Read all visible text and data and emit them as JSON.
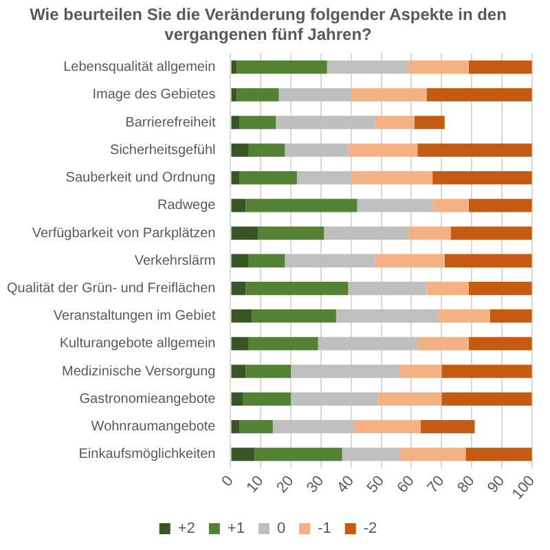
{
  "chart_data": {
    "type": "bar",
    "orientation": "horizontal",
    "stacked": true,
    "title": "Wie beurteilen Sie die Veränderung folgender Aspekte in den vergangenen fünf Jahren?",
    "categories": [
      "Lebensqualität allgemein",
      "Image des Gebietes",
      "Barrierefreiheit",
      "Sicherheitsgefühl",
      "Sauberkeit und Ordnung",
      "Radwege",
      "Verfügbarkeit von Parkplätzen",
      "Verkehrslärm",
      "Qualität der Grün- und Freiflächen",
      "Veranstaltungen im Gebiet",
      "Kulturangebote allgemein",
      "Medizinische Versorgung",
      "Gastronomieangebote",
      "Wohnraumangebote",
      "Einkaufsmöglichkeiten"
    ],
    "series": [
      {
        "name": "+2",
        "color": "#375623",
        "values": [
          2,
          2,
          3,
          6,
          3,
          5,
          9,
          6,
          5,
          7,
          6,
          5,
          4,
          3,
          8
        ]
      },
      {
        "name": "+1",
        "color": "#548235",
        "values": [
          30,
          14,
          12,
          12,
          19,
          37,
          22,
          12,
          34,
          28,
          23,
          15,
          16,
          11,
          29
        ]
      },
      {
        "name": "0",
        "color": "#bfbfbf",
        "values": [
          27,
          24,
          33,
          21,
          18,
          25,
          28,
          30,
          26,
          34,
          33,
          36,
          29,
          27,
          19
        ]
      },
      {
        "name": "-1",
        "color": "#f4b183",
        "values": [
          20,
          25,
          13,
          23,
          27,
          12,
          14,
          23,
          14,
          17,
          17,
          14,
          21,
          22,
          22
        ]
      },
      {
        "name": "-2",
        "color": "#c55a11",
        "values": [
          21,
          35,
          10,
          38,
          33,
          21,
          27,
          29,
          21,
          14,
          21,
          30,
          30,
          18,
          22
        ]
      }
    ],
    "xlim": [
      0,
      100
    ],
    "xticks": [
      0,
      10,
      20,
      30,
      40,
      50,
      60,
      70,
      80,
      90,
      100
    ],
    "grid": "x",
    "legend": "bottom"
  }
}
